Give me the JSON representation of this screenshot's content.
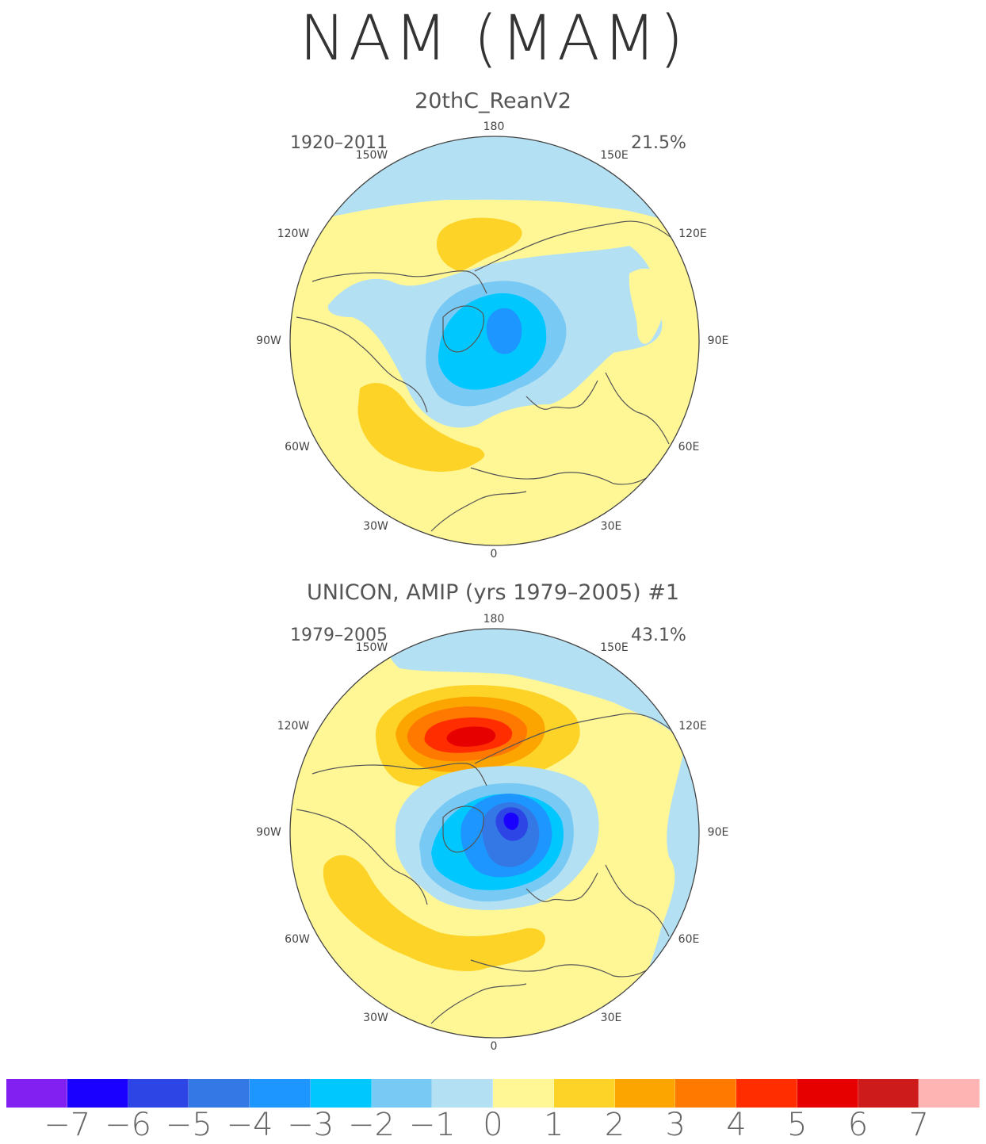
{
  "figure": {
    "title": "NAM (MAM)"
  },
  "panels": [
    {
      "title": "20thC_ReanV2",
      "period": "1920–2011",
      "percent": "21.5%"
    },
    {
      "title": "UNICON, AMIP (yrs 1979–2005)     #1",
      "period": "1979–2005",
      "percent": "43.1%"
    }
  ],
  "longitude_labels": {
    "lon_180": "180",
    "lon_150w": "150W",
    "lon_150e": "150E",
    "lon_120w": "120W",
    "lon_120e": "120E",
    "lon_90w": "90W",
    "lon_90e": "90E",
    "lon_60w": "60W",
    "lon_60e": "60E",
    "lon_30w": "30W",
    "lon_30e": "30E",
    "lon_0": "0"
  },
  "colorbar": {
    "colors": [
      "#8120f0",
      "#1a00ff",
      "#2e45e6",
      "#3478e6",
      "#1e96ff",
      "#00c8ff",
      "#78caf5",
      "#b4e0f3",
      "#fff796",
      "#fdd327",
      "#fca500",
      "#ff7800",
      "#ff2d00",
      "#e60000",
      "#cd1a1a",
      "#ffb4b4"
    ],
    "labels": [
      "−7",
      "−6",
      "−5",
      "−4",
      "−3",
      "−2",
      "−1",
      "0",
      "1",
      "2",
      "3",
      "4",
      "5",
      "6",
      "7"
    ]
  },
  "colors": {
    "neg_light": "#b4e0f3",
    "neg_2": "#78caf5",
    "neg_3": "#00c8ff",
    "neg_4": "#1e96ff",
    "neg_5": "#3478e6",
    "neg_6": "#2e45e6",
    "neg_7": "#1a00ff",
    "pos_light": "#fff796",
    "pos_2": "#fdd327",
    "pos_3": "#fca500",
    "pos_4": "#ff7800",
    "pos_5": "#ff2d00",
    "pos_6": "#e60000",
    "coast": "#555555"
  }
}
